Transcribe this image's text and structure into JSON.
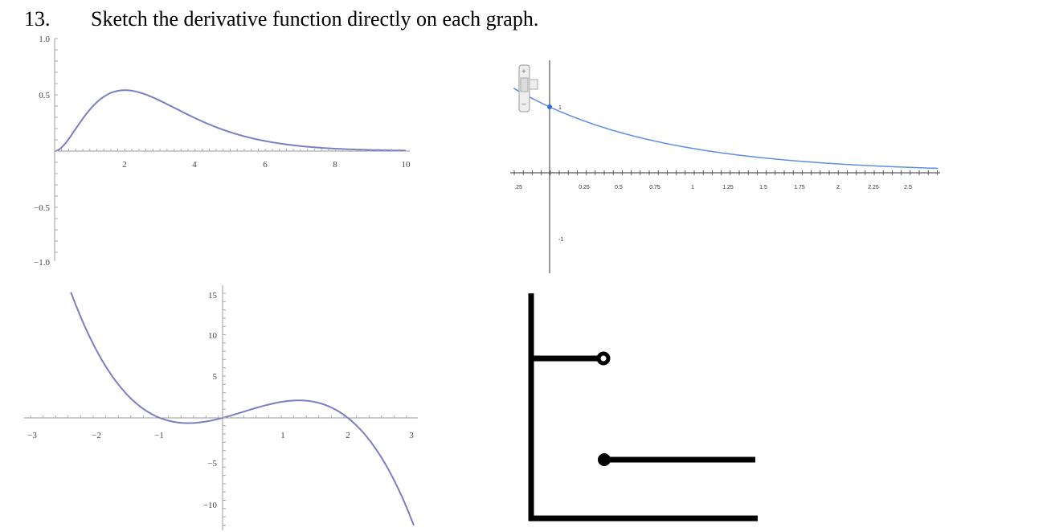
{
  "header": {
    "number": "13.",
    "instruction": "Sketch the derivative function directly on each graph."
  },
  "graphs": [
    {
      "x_labels": [
        "2",
        "4",
        "6",
        "8",
        "10"
      ],
      "y_labels": [
        "1.0",
        "0.5",
        "−0.5",
        "−1.0"
      ]
    },
    {
      "x_labels": [
        ".25",
        "0.25",
        "0.5",
        "0.75",
        "1",
        "1.25",
        "1.5",
        "1.75",
        "2",
        "2.25",
        "2.5"
      ],
      "y_labels": [
        "1",
        "-1"
      ]
    },
    {
      "x_labels": [
        "−3",
        "−2",
        "−1",
        "1",
        "2",
        "3"
      ],
      "y_labels": [
        "15",
        "10",
        "5",
        "−5",
        "−10"
      ]
    }
  ]
}
